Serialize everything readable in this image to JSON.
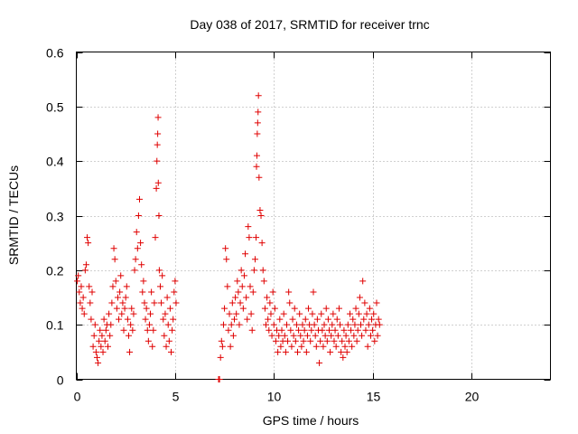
{
  "chart_data": {
    "type": "scatter",
    "title": "Day 038 of 2017, SRMTID for receiver trnc",
    "xlabel": "GPS time / hours",
    "ylabel": "SRMTID / TECUs",
    "xlim": [
      0,
      24
    ],
    "ylim": [
      0,
      0.6
    ],
    "xticks": [
      0,
      5,
      10,
      15,
      20
    ],
    "xtick_labels": [
      "0",
      "5",
      "10",
      "15",
      "20"
    ],
    "yticks": [
      0,
      0.1,
      0.2,
      0.3,
      0.4,
      0.5,
      0.6
    ],
    "ytick_labels": [
      "0",
      "0.1",
      "0.2",
      "0.3",
      "0.4",
      "0.5",
      "0.6"
    ],
    "grid": true,
    "marker": "+",
    "color": "#e00000",
    "series": [
      {
        "name": "SRMTID",
        "points": [
          [
            0.05,
            0.18
          ],
          [
            0.1,
            0.19
          ],
          [
            0.15,
            0.16
          ],
          [
            0.2,
            0.14
          ],
          [
            0.25,
            0.17
          ],
          [
            0.3,
            0.13
          ],
          [
            0.35,
            0.15
          ],
          [
            0.4,
            0.12
          ],
          [
            0.45,
            0.2
          ],
          [
            0.5,
            0.21
          ],
          [
            0.55,
            0.26
          ],
          [
            0.6,
            0.25
          ],
          [
            0.65,
            0.17
          ],
          [
            0.7,
            0.14
          ],
          [
            0.75,
            0.11
          ],
          [
            0.8,
            0.16
          ],
          [
            0.85,
            0.06
          ],
          [
            0.9,
            0.08
          ],
          [
            0.95,
            0.1
          ],
          [
            1.0,
            0.05
          ],
          [
            1.05,
            0.04
          ],
          [
            1.1,
            0.03
          ],
          [
            1.15,
            0.07
          ],
          [
            1.2,
            0.09
          ],
          [
            1.25,
            0.06
          ],
          [
            1.3,
            0.08
          ],
          [
            1.35,
            0.05
          ],
          [
            1.4,
            0.11
          ],
          [
            1.45,
            0.07
          ],
          [
            1.5,
            0.09
          ],
          [
            1.55,
            0.1
          ],
          [
            1.6,
            0.06
          ],
          [
            1.65,
            0.12
          ],
          [
            1.7,
            0.08
          ],
          [
            1.75,
            0.1
          ],
          [
            1.8,
            0.14
          ],
          [
            1.85,
            0.17
          ],
          [
            1.9,
            0.24
          ],
          [
            1.95,
            0.22
          ],
          [
            2.0,
            0.18
          ],
          [
            2.05,
            0.13
          ],
          [
            2.1,
            0.15
          ],
          [
            2.15,
            0.11
          ],
          [
            2.2,
            0.16
          ],
          [
            2.25,
            0.19
          ],
          [
            2.3,
            0.12
          ],
          [
            2.35,
            0.14
          ],
          [
            2.4,
            0.09
          ],
          [
            2.45,
            0.13
          ],
          [
            2.5,
            0.15
          ],
          [
            2.55,
            0.17
          ],
          [
            2.6,
            0.11
          ],
          [
            2.65,
            0.08
          ],
          [
            2.7,
            0.05
          ],
          [
            2.75,
            0.1
          ],
          [
            2.8,
            0.13
          ],
          [
            2.85,
            0.09
          ],
          [
            2.9,
            0.12
          ],
          [
            2.95,
            0.2
          ],
          [
            3.0,
            0.22
          ],
          [
            3.05,
            0.27
          ],
          [
            3.1,
            0.24
          ],
          [
            3.15,
            0.3
          ],
          [
            3.2,
            0.33
          ],
          [
            3.25,
            0.25
          ],
          [
            3.3,
            0.21
          ],
          [
            3.35,
            0.16
          ],
          [
            3.4,
            0.18
          ],
          [
            3.45,
            0.14
          ],
          [
            3.5,
            0.11
          ],
          [
            3.55,
            0.13
          ],
          [
            3.6,
            0.09
          ],
          [
            3.65,
            0.07
          ],
          [
            3.7,
            0.1
          ],
          [
            3.75,
            0.12
          ],
          [
            3.8,
            0.16
          ],
          [
            3.85,
            0.06
          ],
          [
            3.9,
            0.09
          ],
          [
            3.95,
            0.14
          ],
          [
            4.0,
            0.26
          ],
          [
            4.05,
            0.35
          ],
          [
            4.08,
            0.4
          ],
          [
            4.1,
            0.43
          ],
          [
            4.12,
            0.45
          ],
          [
            4.14,
            0.48
          ],
          [
            4.15,
            0.36
          ],
          [
            4.18,
            0.3
          ],
          [
            4.2,
            0.2
          ],
          [
            4.25,
            0.17
          ],
          [
            4.3,
            0.14
          ],
          [
            4.35,
            0.19
          ],
          [
            4.4,
            0.11
          ],
          [
            4.45,
            0.08
          ],
          [
            4.5,
            0.12
          ],
          [
            4.55,
            0.06
          ],
          [
            4.6,
            0.15
          ],
          [
            4.65,
            0.1
          ],
          [
            4.7,
            0.07
          ],
          [
            4.75,
            0.13
          ],
          [
            4.8,
            0.05
          ],
          [
            4.85,
            0.09
          ],
          [
            4.9,
            0.11
          ],
          [
            4.95,
            0.16
          ],
          [
            5.0,
            0.18
          ],
          [
            5.05,
            0.14
          ],
          [
            7.2,
            0.0
          ],
          [
            7.25,
            0.0
          ],
          [
            7.3,
            0.04
          ],
          [
            7.35,
            0.07
          ],
          [
            7.4,
            0.06
          ],
          [
            7.45,
            0.1
          ],
          [
            7.5,
            0.13
          ],
          [
            7.55,
            0.24
          ],
          [
            7.6,
            0.22
          ],
          [
            7.65,
            0.17
          ],
          [
            7.7,
            0.09
          ],
          [
            7.75,
            0.12
          ],
          [
            7.8,
            0.06
          ],
          [
            7.85,
            0.1
          ],
          [
            7.9,
            0.14
          ],
          [
            7.95,
            0.08
          ],
          [
            8.0,
            0.11
          ],
          [
            8.05,
            0.15
          ],
          [
            8.1,
            0.12
          ],
          [
            8.15,
            0.18
          ],
          [
            8.2,
            0.16
          ],
          [
            8.25,
            0.1
          ],
          [
            8.3,
            0.14
          ],
          [
            8.35,
            0.2
          ],
          [
            8.4,
            0.17
          ],
          [
            8.45,
            0.13
          ],
          [
            8.5,
            0.19
          ],
          [
            8.55,
            0.23
          ],
          [
            8.6,
            0.15
          ],
          [
            8.65,
            0.11
          ],
          [
            8.7,
            0.28
          ],
          [
            8.75,
            0.26
          ],
          [
            8.8,
            0.17
          ],
          [
            8.85,
            0.12
          ],
          [
            8.9,
            0.09
          ],
          [
            8.95,
            0.16
          ],
          [
            9.0,
            0.2
          ],
          [
            9.05,
            0.22
          ],
          [
            9.1,
            0.26
          ],
          [
            9.12,
            0.39
          ],
          [
            9.14,
            0.41
          ],
          [
            9.16,
            0.45
          ],
          [
            9.18,
            0.47
          ],
          [
            9.2,
            0.49
          ],
          [
            9.22,
            0.52
          ],
          [
            9.25,
            0.37
          ],
          [
            9.3,
            0.31
          ],
          [
            9.35,
            0.3
          ],
          [
            9.4,
            0.25
          ],
          [
            9.45,
            0.2
          ],
          [
            9.5,
            0.18
          ],
          [
            9.55,
            0.13
          ],
          [
            9.6,
            0.1
          ],
          [
            9.65,
            0.15
          ],
          [
            9.7,
            0.11
          ],
          [
            9.75,
            0.09
          ],
          [
            9.8,
            0.14
          ],
          [
            9.85,
            0.12
          ],
          [
            9.9,
            0.08
          ],
          [
            9.95,
            0.16
          ],
          [
            10.0,
            0.1
          ],
          [
            10.05,
            0.13
          ],
          [
            10.1,
            0.07
          ],
          [
            10.15,
            0.09
          ],
          [
            10.2,
            0.05
          ],
          [
            10.25,
            0.08
          ],
          [
            10.3,
            0.11
          ],
          [
            10.35,
            0.06
          ],
          [
            10.4,
            0.09
          ],
          [
            10.45,
            0.07
          ],
          [
            10.5,
            0.12
          ],
          [
            10.55,
            0.08
          ],
          [
            10.6,
            0.05
          ],
          [
            10.65,
            0.1
          ],
          [
            10.7,
            0.07
          ],
          [
            10.75,
            0.16
          ],
          [
            10.8,
            0.14
          ],
          [
            10.85,
            0.09
          ],
          [
            10.9,
            0.06
          ],
          [
            10.95,
            0.11
          ],
          [
            11.0,
            0.08
          ],
          [
            11.05,
            0.13
          ],
          [
            11.1,
            0.07
          ],
          [
            11.15,
            0.1
          ],
          [
            11.2,
            0.05
          ],
          [
            11.25,
            0.09
          ],
          [
            11.3,
            0.12
          ],
          [
            11.35,
            0.08
          ],
          [
            11.4,
            0.06
          ],
          [
            11.45,
            0.1
          ],
          [
            11.5,
            0.07
          ],
          [
            11.55,
            0.09
          ],
          [
            11.6,
            0.11
          ],
          [
            11.65,
            0.05
          ],
          [
            11.7,
            0.08
          ],
          [
            11.75,
            0.13
          ],
          [
            11.8,
            0.1
          ],
          [
            11.85,
            0.07
          ],
          [
            11.9,
            0.09
          ],
          [
            11.95,
            0.12
          ],
          [
            12.0,
            0.16
          ],
          [
            12.05,
            0.1
          ],
          [
            12.1,
            0.08
          ],
          [
            12.15,
            0.06
          ],
          [
            12.2,
            0.11
          ],
          [
            12.25,
            0.09
          ],
          [
            12.3,
            0.03
          ],
          [
            12.35,
            0.07
          ],
          [
            12.4,
            0.12
          ],
          [
            12.45,
            0.09
          ],
          [
            12.5,
            0.06
          ],
          [
            12.55,
            0.1
          ],
          [
            12.6,
            0.08
          ],
          [
            12.65,
            0.13
          ],
          [
            12.7,
            0.07
          ],
          [
            12.75,
            0.11
          ],
          [
            12.8,
            0.09
          ],
          [
            12.85,
            0.05
          ],
          [
            12.9,
            0.08
          ],
          [
            12.95,
            0.1
          ],
          [
            13.0,
            0.12
          ],
          [
            13.05,
            0.07
          ],
          [
            13.1,
            0.09
          ],
          [
            13.15,
            0.06
          ],
          [
            13.2,
            0.11
          ],
          [
            13.25,
            0.08
          ],
          [
            13.3,
            0.13
          ],
          [
            13.35,
            0.1
          ],
          [
            13.4,
            0.05
          ],
          [
            13.45,
            0.07
          ],
          [
            13.5,
            0.04
          ],
          [
            13.55,
            0.09
          ],
          [
            13.6,
            0.06
          ],
          [
            13.65,
            0.08
          ],
          [
            13.7,
            0.05
          ],
          [
            13.75,
            0.1
          ],
          [
            13.8,
            0.07
          ],
          [
            13.85,
            0.12
          ],
          [
            13.9,
            0.09
          ],
          [
            13.95,
            0.06
          ],
          [
            14.0,
            0.11
          ],
          [
            14.05,
            0.08
          ],
          [
            14.1,
            0.1
          ],
          [
            14.15,
            0.13
          ],
          [
            14.2,
            0.07
          ],
          [
            14.25,
            0.09
          ],
          [
            14.3,
            0.12
          ],
          [
            14.35,
            0.15
          ],
          [
            14.4,
            0.1
          ],
          [
            14.45,
            0.08
          ],
          [
            14.5,
            0.18
          ],
          [
            14.55,
            0.11
          ],
          [
            14.6,
            0.14
          ],
          [
            14.65,
            0.09
          ],
          [
            14.7,
            0.12
          ],
          [
            14.75,
            0.06
          ],
          [
            14.8,
            0.1
          ],
          [
            14.85,
            0.13
          ],
          [
            14.9,
            0.08
          ],
          [
            14.95,
            0.11
          ],
          [
            15.0,
            0.09
          ],
          [
            15.05,
            0.12
          ],
          [
            15.1,
            0.07
          ],
          [
            15.15,
            0.1
          ],
          [
            15.2,
            0.14
          ],
          [
            15.25,
            0.08
          ],
          [
            15.3,
            0.11
          ],
          [
            15.35,
            0.1
          ]
        ]
      }
    ]
  }
}
